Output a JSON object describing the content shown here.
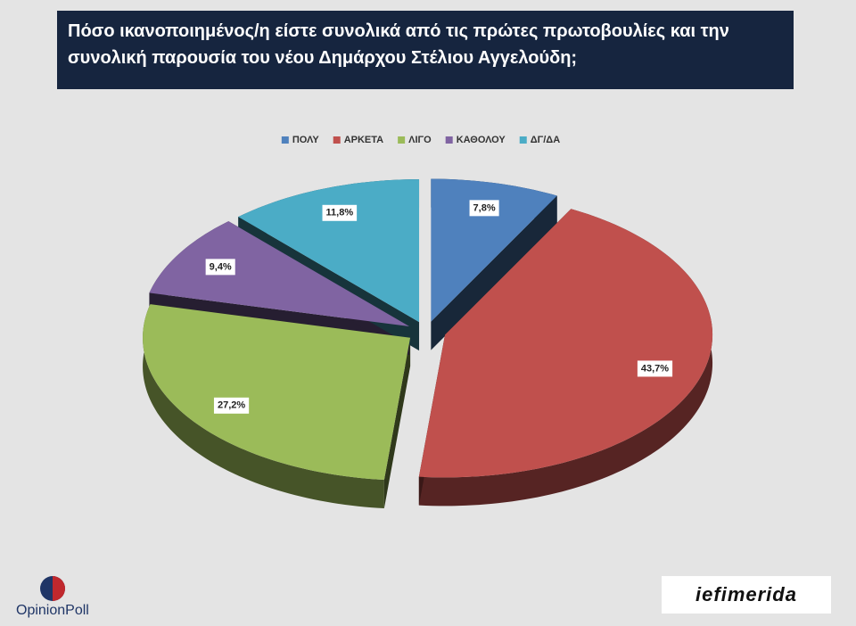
{
  "chart_data": {
    "type": "pie",
    "title": "Πόσο ικανοποιημένος/η είστε συνολικά από τις πρώτες πρωτοβουλίες και την συνολική παρουσία του νέου Δημάρχου Στέλιου Αγγελούδη;",
    "categories": [
      "ΠΟΛΥ",
      "ΑΡΚΕΤΑ",
      "ΛΙΓΟ",
      "ΚΑΘΟΛΟΥ",
      "ΔΓ/ΔΑ"
    ],
    "values": [
      7.8,
      43.7,
      27.2,
      9.4,
      11.8
    ],
    "value_labels": [
      "7,8%",
      "43,7%",
      "27,2%",
      "9,4%",
      "11,8%"
    ],
    "colors": [
      "#4f81bd",
      "#c0504d",
      "#9bbb59",
      "#8064a2",
      "#4bacc6"
    ],
    "legend": "top"
  },
  "logos": {
    "left": "OpinionPoll",
    "right": "iefimerida"
  }
}
